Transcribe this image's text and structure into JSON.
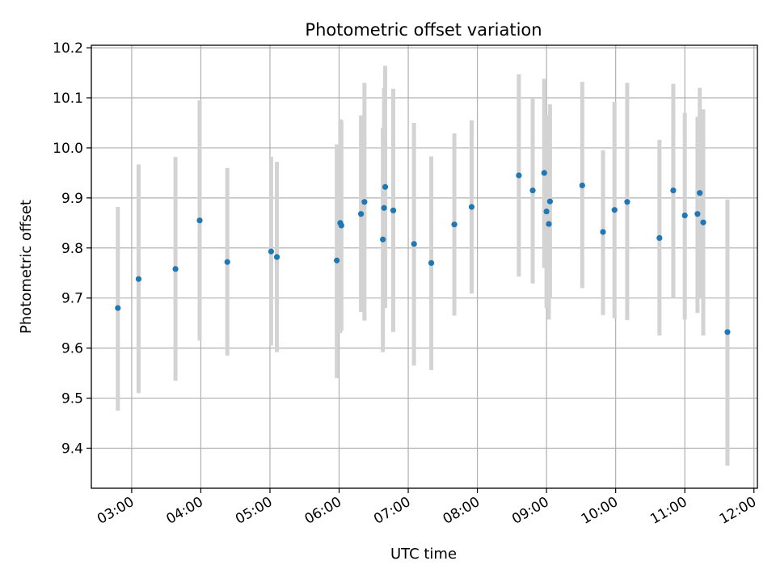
{
  "chart_data": {
    "type": "scatter",
    "title": "Photometric offset variation",
    "xlabel": "UTC time",
    "ylabel": "Photometric offset",
    "grid": true,
    "legend": "none",
    "xlim": [
      "02:25",
      "12:03"
    ],
    "ylim": [
      9.32,
      10.205
    ],
    "x_ticks": [
      "03:00",
      "04:00",
      "05:00",
      "06:00",
      "07:00",
      "08:00",
      "09:00",
      "10:00",
      "11:00",
      "12:00"
    ],
    "y_ticks": [
      "9.4",
      "9.5",
      "9.6",
      "9.7",
      "9.8",
      "9.9",
      "10.0",
      "10.1",
      "10.2"
    ],
    "colors": {
      "point": "#1f77b4",
      "errorbar": "#d3d3d3",
      "grid": "#b0b0b0"
    },
    "series": [
      {
        "points": [
          {
            "x": "02:48",
            "y": 9.68,
            "yerr_low": 9.475,
            "yerr_high": 9.882
          },
          {
            "x": "03:06",
            "y": 9.738,
            "yerr_low": 9.51,
            "yerr_high": 9.967
          },
          {
            "x": "03:38",
            "y": 9.758,
            "yerr_low": 9.535,
            "yerr_high": 9.982
          },
          {
            "x": "03:59",
            "y": 9.855,
            "yerr_low": 9.615,
            "yerr_high": 10.095
          },
          {
            "x": "04:23",
            "y": 9.772,
            "yerr_low": 9.585,
            "yerr_high": 9.96
          },
          {
            "x": "05:01",
            "y": 9.793,
            "yerr_low": 9.605,
            "yerr_high": 9.982
          },
          {
            "x": "05:06",
            "y": 9.782,
            "yerr_low": 9.592,
            "yerr_high": 9.972
          },
          {
            "x": "05:58",
            "y": 9.775,
            "yerr_low": 9.54,
            "yerr_high": 10.007
          },
          {
            "x": "06:01",
            "y": 9.85,
            "yerr_low": 9.63,
            "yerr_high": 10.057
          },
          {
            "x": "06:02",
            "y": 9.845,
            "yerr_low": 9.635,
            "yerr_high": 10.055
          },
          {
            "x": "06:19",
            "y": 9.868,
            "yerr_low": 9.672,
            "yerr_high": 10.065
          },
          {
            "x": "06:22",
            "y": 9.892,
            "yerr_low": 9.655,
            "yerr_high": 10.13
          },
          {
            "x": "06:38",
            "y": 9.817,
            "yerr_low": 9.592,
            "yerr_high": 10.04
          },
          {
            "x": "06:39",
            "y": 9.88,
            "yerr_low": 9.682,
            "yerr_high": 10.12
          },
          {
            "x": "06:40",
            "y": 9.922,
            "yerr_low": 9.68,
            "yerr_high": 10.164
          },
          {
            "x": "06:47",
            "y": 9.875,
            "yerr_low": 9.632,
            "yerr_high": 10.118
          },
          {
            "x": "07:05",
            "y": 9.808,
            "yerr_low": 9.565,
            "yerr_high": 10.05
          },
          {
            "x": "07:20",
            "y": 9.77,
            "yerr_low": 9.556,
            "yerr_high": 9.983
          },
          {
            "x": "07:40",
            "y": 9.847,
            "yerr_low": 9.665,
            "yerr_high": 10.029
          },
          {
            "x": "07:55",
            "y": 9.882,
            "yerr_low": 9.709,
            "yerr_high": 10.055
          },
          {
            "x": "08:36",
            "y": 9.945,
            "yerr_low": 9.743,
            "yerr_high": 10.147
          },
          {
            "x": "08:48",
            "y": 9.915,
            "yerr_low": 9.729,
            "yerr_high": 10.1
          },
          {
            "x": "08:58",
            "y": 9.95,
            "yerr_low": 9.76,
            "yerr_high": 10.138
          },
          {
            "x": "09:00",
            "y": 9.873,
            "yerr_low": 9.68,
            "yerr_high": 10.065
          },
          {
            "x": "09:02",
            "y": 9.848,
            "yerr_low": 9.657,
            "yerr_high": 10.035
          },
          {
            "x": "09:03",
            "y": 9.893,
            "yerr_low": 9.7,
            "yerr_high": 10.087
          },
          {
            "x": "09:31",
            "y": 9.925,
            "yerr_low": 9.72,
            "yerr_high": 10.132
          },
          {
            "x": "09:49",
            "y": 9.832,
            "yerr_low": 9.666,
            "yerr_high": 9.995
          },
          {
            "x": "09:59",
            "y": 9.876,
            "yerr_low": 9.66,
            "yerr_high": 10.092
          },
          {
            "x": "10:10",
            "y": 9.892,
            "yerr_low": 9.656,
            "yerr_high": 10.13
          },
          {
            "x": "10:38",
            "y": 9.82,
            "yerr_low": 9.625,
            "yerr_high": 10.016
          },
          {
            "x": "10:50",
            "y": 9.915,
            "yerr_low": 9.7,
            "yerr_high": 10.128
          },
          {
            "x": "11:00",
            "y": 9.865,
            "yerr_low": 9.657,
            "yerr_high": 10.07
          },
          {
            "x": "11:11",
            "y": 9.868,
            "yerr_low": 9.67,
            "yerr_high": 10.062
          },
          {
            "x": "11:13",
            "y": 9.91,
            "yerr_low": 9.7,
            "yerr_high": 10.12
          },
          {
            "x": "11:16",
            "y": 9.851,
            "yerr_low": 9.625,
            "yerr_high": 10.077
          },
          {
            "x": "11:37",
            "y": 9.632,
            "yerr_low": 9.365,
            "yerr_high": 9.897
          }
        ]
      }
    ]
  }
}
